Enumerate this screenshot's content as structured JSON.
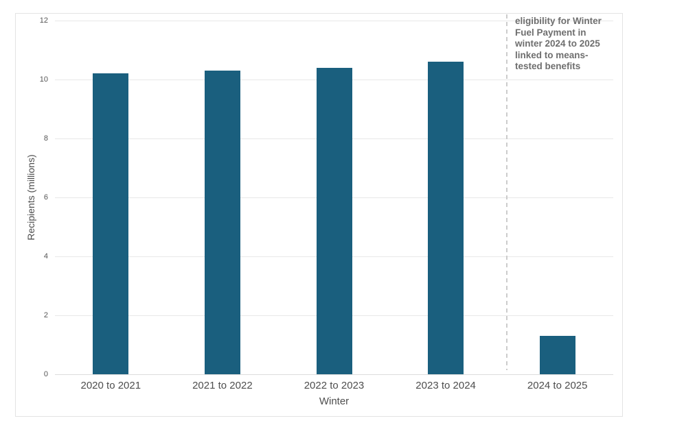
{
  "chart_data": {
    "type": "bar",
    "title": "",
    "xlabel": "Winter",
    "ylabel": "Recipients (millions)",
    "categories": [
      "2020 to 2021",
      "2021 to 2022",
      "2022 to 2023",
      "2023 to 2024",
      "2024 to 2025"
    ],
    "values": [
      10.2,
      10.3,
      10.4,
      10.6,
      1.3
    ],
    "ylim": [
      0,
      12
    ],
    "yticks": [
      0,
      2,
      4,
      6,
      8,
      10,
      12
    ],
    "grid": true,
    "legend_position": "none",
    "bar_color": "#1a5f7e",
    "gridline_color": "#e8e8e8",
    "axis_text_color": "#4d4d4d",
    "annotation": {
      "text": "eligibility for Winter\nFuel Payment in\nwinter 2024 to 2025\nlinked to means-\ntested benefits",
      "color": "#6e6e6e"
    },
    "dashed_line": {
      "between_categories": [
        "2023 to 2024",
        "2024 to 2025"
      ],
      "color": "#cccccc",
      "style": "dashed-vertical"
    }
  }
}
